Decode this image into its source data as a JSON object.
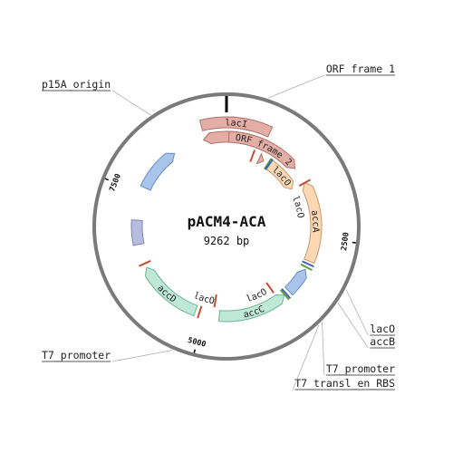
{
  "plasmid": {
    "name": "pACM4-ACA",
    "size_label": "9262 bp",
    "length": 9262
  },
  "ticks": [
    {
      "bp": 0,
      "label": ""
    },
    {
      "bp": 2500,
      "label": "2500"
    },
    {
      "bp": 5000,
      "label": "5000"
    },
    {
      "bp": 7500,
      "label": "7500"
    }
  ],
  "features": [
    {
      "id": "lacI-a",
      "label": "lacI",
      "type": "arrow",
      "start": 8900,
      "end": 9900,
      "strand": "none",
      "track": "outer",
      "color": "#e3aea6",
      "stroke": "#b07068"
    },
    {
      "id": "lacI-b",
      "label": "",
      "type": "arrow",
      "start": 8880,
      "end": 9910,
      "strand": "reverse",
      "track": "inner",
      "color": "#e3aea6",
      "stroke": "#b07068"
    },
    {
      "id": "orf2",
      "label": "ORF frame 2",
      "type": "arrow",
      "start": 40,
      "end": 1280,
      "strand": "forward",
      "track": "inner",
      "color": "#e3aea6",
      "stroke": "#b07068"
    },
    {
      "id": "tri",
      "label": "",
      "type": "triangle",
      "start": 660,
      "end": 760,
      "track": "deep",
      "color": "#e3aea6",
      "stroke": "#b07068"
    },
    {
      "id": "lacO-1",
      "label": "lacO",
      "type": "arrow",
      "start": 900,
      "end": 1550,
      "strand": "forward",
      "track": "deep",
      "color": "#fbd7b4",
      "stroke": "#c89a70"
    },
    {
      "id": "accA",
      "label": "accA",
      "type": "arrow",
      "start": 1560,
      "end": 2900,
      "strand": "reverse",
      "track": "inner",
      "color": "#fbd7b4",
      "stroke": "#c89a70"
    },
    {
      "id": "lacO-2",
      "label": "lacO",
      "type": "label",
      "start": 1800,
      "end": 2050,
      "track": "deep"
    },
    {
      "id": "accB",
      "label": "",
      "type": "arrow",
      "start": 3050,
      "end": 3500,
      "strand": "reverse",
      "track": "inner",
      "color": "#a9c4ea",
      "stroke": "#6a8cc0"
    },
    {
      "id": "accC",
      "label": "accC",
      "type": "arrow",
      "start": 3600,
      "end": 4750,
      "strand": "reverse",
      "track": "inner",
      "color": "#bfe8d8",
      "stroke": "#6fb597"
    },
    {
      "id": "lacO-3",
      "label": "lacO",
      "type": "label",
      "start": 3900,
      "end": 4150,
      "track": "deep"
    },
    {
      "id": "lacO-4",
      "label": "lacO",
      "type": "label",
      "start": 4950,
      "end": 5200,
      "track": "deep"
    },
    {
      "id": "accD",
      "label": "accD",
      "type": "arrow",
      "start": 5150,
      "end": 6250,
      "strand": "forward",
      "track": "inner",
      "color": "#bfe8d8",
      "stroke": "#6fb597"
    },
    {
      "id": "purple",
      "label": "",
      "type": "arrow",
      "start": 6650,
      "end": 7050,
      "strand": "none",
      "track": "inner",
      "color": "#b8bde0",
      "stroke": "#7e84b8"
    },
    {
      "id": "blue2",
      "label": "",
      "type": "arrow",
      "start": 7600,
      "end": 8350,
      "strand": "forward",
      "track": "inner",
      "color": "#a9c4ea",
      "stroke": "#6a8cc0"
    }
  ],
  "marks": [
    {
      "bp": 520,
      "color": "#c05030",
      "track": "deep"
    },
    {
      "bp": 860,
      "color": "#5aa040",
      "track": "deep"
    },
    {
      "bp": 885,
      "color": "#4060c0",
      "track": "deep"
    },
    {
      "bp": 1565,
      "color": "#c05030",
      "track": "inner"
    },
    {
      "bp": 2950,
      "color": "#4060c0",
      "track": "inner"
    },
    {
      "bp": 3010,
      "color": "#5aa040",
      "track": "inner"
    },
    {
      "bp": 3560,
      "color": "#4060c0",
      "track": "inner"
    },
    {
      "bp": 3590,
      "color": "#5aa040",
      "track": "inner"
    },
    {
      "bp": 3720,
      "color": "#c05030",
      "track": "deep"
    },
    {
      "bp": 4850,
      "color": "#c05030",
      "track": "deep"
    },
    {
      "bp": 5080,
      "color": "#c05030",
      "track": "inner"
    },
    {
      "bp": 6320,
      "color": "#c05030",
      "track": "inner"
    }
  ],
  "external_labels": [
    {
      "id": "orf1",
      "text": "ORF frame 1",
      "bp": 460,
      "side": "right",
      "row": 0
    },
    {
      "id": "p15a",
      "text": "p15A_origin",
      "bp": 8380,
      "side": "left",
      "row": 0
    },
    {
      "id": "lacO-ext",
      "text": "lacO",
      "bp": 3030,
      "side": "right",
      "row": 1
    },
    {
      "id": "accB-ext",
      "text": "accB",
      "bp": 3200,
      "side": "right",
      "row": 2
    },
    {
      "id": "t7p-right",
      "text": "T7_promoter",
      "bp": 3470,
      "side": "right",
      "row": 3
    },
    {
      "id": "t7rbs",
      "text": "T7_transl_en_RBS",
      "bp": 3520,
      "side": "right",
      "row": 4
    },
    {
      "id": "t7p-left",
      "text": "T7_promoter",
      "bp": 5240,
      "side": "left",
      "row": 1
    }
  ]
}
